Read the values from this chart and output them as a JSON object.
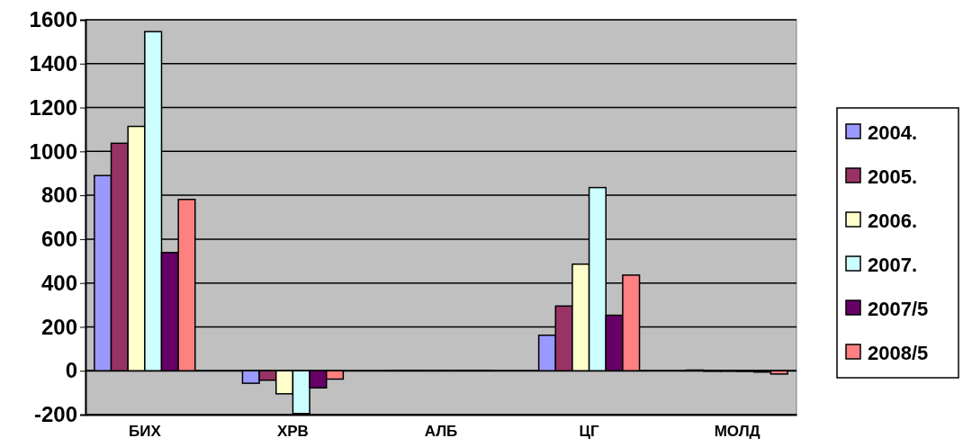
{
  "chart_data": {
    "type": "bar",
    "categories": [
      "БИХ",
      "ХРВ",
      "АЛБ",
      "ЦГ",
      "МОЛД"
    ],
    "series": [
      {
        "name": "2004.",
        "color": "#9999ff",
        "values": [
          890,
          -57,
          2,
          162,
          3
        ]
      },
      {
        "name": "2005.",
        "color": "#993366",
        "values": [
          1037,
          -43,
          2,
          295,
          -2
        ]
      },
      {
        "name": "2006.",
        "color": "#ffffcc",
        "values": [
          1114,
          -105,
          2,
          486,
          -2
        ]
      },
      {
        "name": "2007.",
        "color": "#ccffff",
        "values": [
          1546,
          -195,
          2,
          835,
          -3
        ]
      },
      {
        "name": "2007/5",
        "color": "#660066",
        "values": [
          539,
          -78,
          2,
          253,
          -6
        ]
      },
      {
        "name": "2008/5",
        "color": "#ff8080",
        "values": [
          781,
          -38,
          2,
          436,
          -15
        ]
      }
    ],
    "ylim": [
      -200,
      1600
    ],
    "yticks": [
      -200,
      0,
      200,
      400,
      600,
      800,
      1000,
      1200,
      1400,
      1600
    ],
    "grid": "y",
    "legend": "right"
  }
}
